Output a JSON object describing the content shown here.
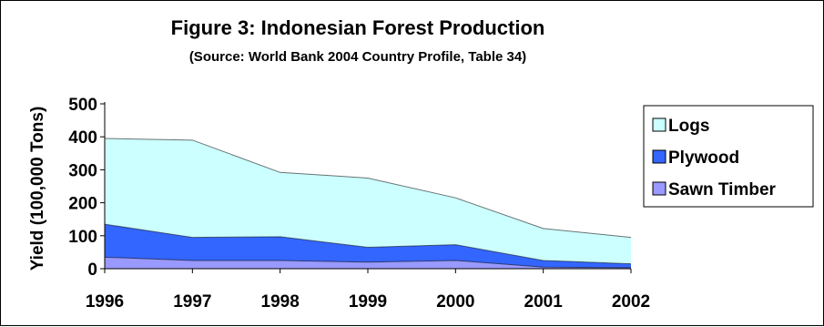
{
  "chart_data": {
    "type": "area",
    "stacked": true,
    "title": "Figure 3: Indonesian Forest Production",
    "subtitle": "(Source: World Bank 2004 Country Profile, Table 34)",
    "xlabel": "",
    "ylabel": "Yield (100,000 Tons)",
    "x": [
      "1996",
      "1997",
      "1998",
      "1999",
      "2000",
      "2001",
      "2002"
    ],
    "ylim": [
      0,
      500
    ],
    "yticks": [
      "0",
      "100",
      "200",
      "300",
      "400",
      "500"
    ],
    "series": [
      {
        "name": "Sawn Timber",
        "color": "#9999ff",
        "values": [
          35,
          25,
          25,
          20,
          25,
          5,
          3
        ]
      },
      {
        "name": "Plywood",
        "color": "#3366ff",
        "values": [
          100,
          70,
          72,
          45,
          48,
          20,
          12
        ]
      },
      {
        "name": "Logs",
        "color": "#ccffff",
        "values": [
          260,
          295,
          195,
          210,
          142,
          97,
          80
        ]
      }
    ],
    "legend_order": [
      "Logs",
      "Plywood",
      "Sawn Timber"
    ],
    "legend_position": "right",
    "grid": false
  }
}
